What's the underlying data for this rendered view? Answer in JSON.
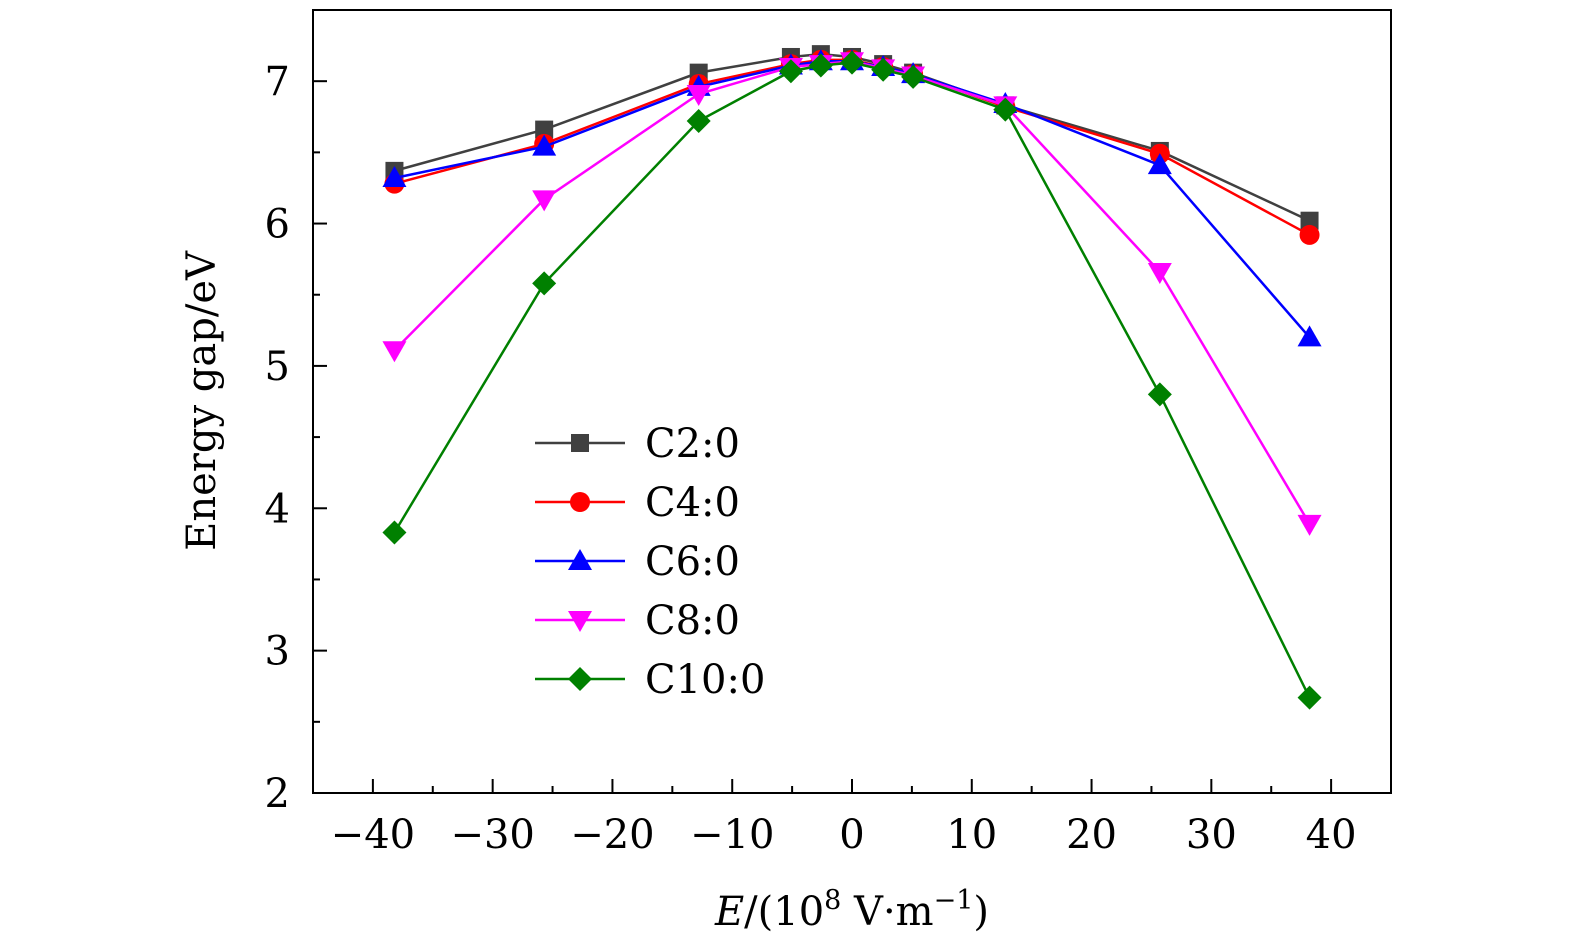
{
  "chart_data": {
    "type": "line",
    "title": "",
    "xlabel": {
      "italic": "E",
      "pre": "/(10",
      "sup1": "8",
      "mid": " V·m",
      "sup2": "−1",
      "post": ")"
    },
    "ylabel": "Energy gap/eV",
    "xlim": [
      -45,
      45
    ],
    "ylim": [
      2,
      7.5
    ],
    "xticks": [
      -40,
      -30,
      -20,
      -10,
      0,
      10,
      20,
      30,
      40
    ],
    "xtick_labels": [
      "−40",
      "−30",
      "−20",
      "−10",
      "0",
      "10",
      "20",
      "30",
      "40"
    ],
    "yticks": [
      2,
      3,
      4,
      5,
      6,
      7
    ],
    "ytick_labels": [
      "2",
      "3",
      "4",
      "5",
      "6",
      "7"
    ],
    "grid": false,
    "legend_position": "center-left",
    "series": [
      {
        "name": "C2:0",
        "color": "#404040",
        "marker": "square",
        "x": [
          -38.2,
          -25.7,
          -12.8,
          -5.1,
          -2.6,
          0,
          2.6,
          5.1,
          12.8,
          25.7,
          38.2
        ],
        "y": [
          6.37,
          6.66,
          7.06,
          7.17,
          7.19,
          7.17,
          7.12,
          7.06,
          6.83,
          6.51,
          6.02
        ]
      },
      {
        "name": "C4:0",
        "color": "#ff0000",
        "marker": "circle",
        "x": [
          -38.2,
          -25.7,
          -12.8,
          -5.1,
          -2.6,
          0,
          2.6,
          5.1,
          12.8,
          25.7,
          38.2
        ],
        "y": [
          6.28,
          6.56,
          6.98,
          7.12,
          7.15,
          7.15,
          7.1,
          7.05,
          6.82,
          6.49,
          5.92
        ]
      },
      {
        "name": "C6:0",
        "color": "#0000ff",
        "marker": "triangle-up",
        "x": [
          -38.2,
          -25.7,
          -12.8,
          -5.1,
          -2.6,
          0,
          2.6,
          5.1,
          12.8,
          25.7,
          38.2
        ],
        "y": [
          6.32,
          6.54,
          6.96,
          7.11,
          7.14,
          7.14,
          7.1,
          7.05,
          6.84,
          6.41,
          5.2
        ]
      },
      {
        "name": "C8:0",
        "color": "#ff00ff",
        "marker": "triangle-down",
        "x": [
          -38.2,
          -25.7,
          -12.8,
          -5.1,
          -2.6,
          0,
          2.6,
          5.1,
          12.8,
          25.7,
          38.2
        ],
        "y": [
          5.11,
          6.17,
          6.91,
          7.1,
          7.12,
          7.14,
          7.09,
          7.04,
          6.83,
          5.66,
          3.89
        ]
      },
      {
        "name": "C10:0",
        "color": "#008000",
        "marker": "diamond",
        "x": [
          -38.2,
          -25.7,
          -12.8,
          -5.1,
          -2.6,
          0,
          2.6,
          5.1,
          12.8,
          25.7,
          38.2
        ],
        "y": [
          3.83,
          5.58,
          6.72,
          7.07,
          7.11,
          7.13,
          7.08,
          7.03,
          6.8,
          4.8,
          2.67
        ]
      }
    ]
  }
}
